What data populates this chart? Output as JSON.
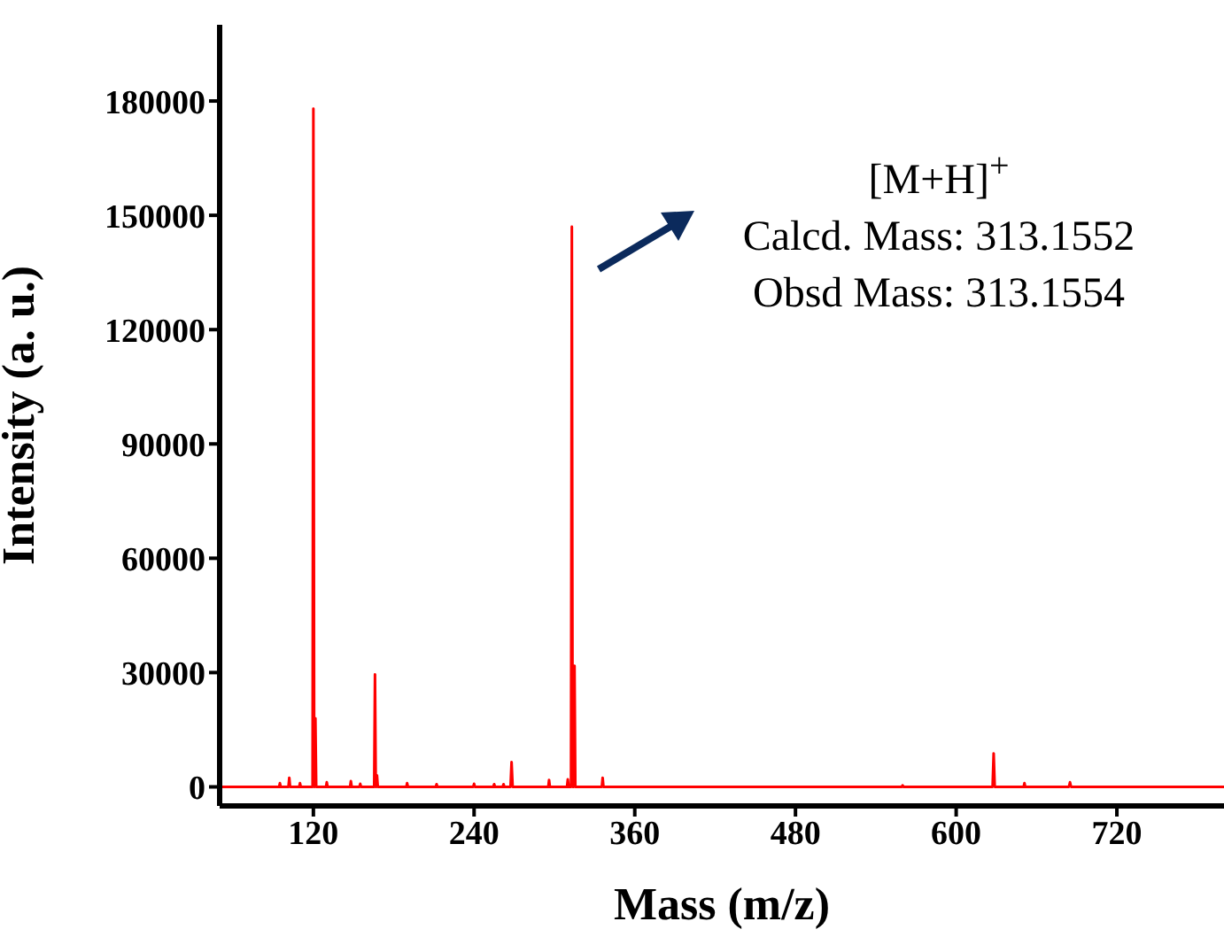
{
  "chart_data": {
    "type": "line",
    "xlabel": "Mass (m/z)",
    "ylabel": "Intensity (a. u.)",
    "annotations": [
      "[M+H]$^{+}$",
      "Calcd. Mass: 313.1552",
      "Obsd Mass: 313.1554"
    ],
    "x": [
      50,
      94.4,
      95,
      95.6,
      101.4,
      102,
      102.6,
      109.4,
      110,
      110.6,
      119.4,
      120,
      120.6,
      121,
      121.5,
      122.1,
      129.4,
      130,
      130.6,
      147.4,
      148,
      148.6,
      154.4,
      155,
      155.6,
      165.4,
      166,
      166.6,
      167,
      167.5,
      168.1,
      189.4,
      190,
      190.6,
      211.4,
      212,
      212.6,
      239.4,
      240,
      240.6,
      254.4,
      255,
      255.6,
      261.4,
      262,
      262.6,
      267.2,
      268,
      268.8,
      295.4,
      296,
      296.6,
      309.4,
      310,
      310.6,
      312.4,
      313,
      313.6,
      314.4,
      315,
      315.6,
      335.4,
      336,
      336.6,
      559.4,
      560,
      560.6,
      627.2,
      628,
      628.8,
      650.4,
      651,
      651.6,
      684.2,
      685,
      685.8,
      800
    ],
    "series": [
      {
        "color": "#ff0000",
        "values": [
          0,
          0,
          1000,
          0,
          0,
          2400,
          0,
          0,
          1000,
          0,
          0,
          178000,
          0,
          0,
          18000,
          0,
          0,
          1200,
          0,
          0,
          1500,
          0,
          0,
          800,
          0,
          0,
          29500,
          0,
          0,
          3000,
          0,
          0,
          1000,
          0,
          0,
          700,
          0,
          0,
          800,
          0,
          0,
          700,
          0,
          0,
          700,
          0,
          0,
          6500,
          0,
          0,
          1800,
          0,
          0,
          2000,
          0,
          0,
          147000,
          0,
          0,
          31800,
          0,
          0,
          2400,
          0,
          0,
          400,
          0,
          0,
          8800,
          0,
          0,
          1000,
          0,
          0,
          1200,
          0,
          0
        ]
      }
    ],
    "xlim": [
      50,
      800
    ],
    "xticks": [
      120,
      240,
      360,
      480,
      600,
      720
    ],
    "ylim": [
      -5000,
      200000
    ],
    "yticks": [
      0,
      30000,
      60000,
      90000,
      120000,
      150000,
      180000
    ],
    "grid": false,
    "legend": false,
    "marker": "none",
    "line_style": "solid"
  }
}
